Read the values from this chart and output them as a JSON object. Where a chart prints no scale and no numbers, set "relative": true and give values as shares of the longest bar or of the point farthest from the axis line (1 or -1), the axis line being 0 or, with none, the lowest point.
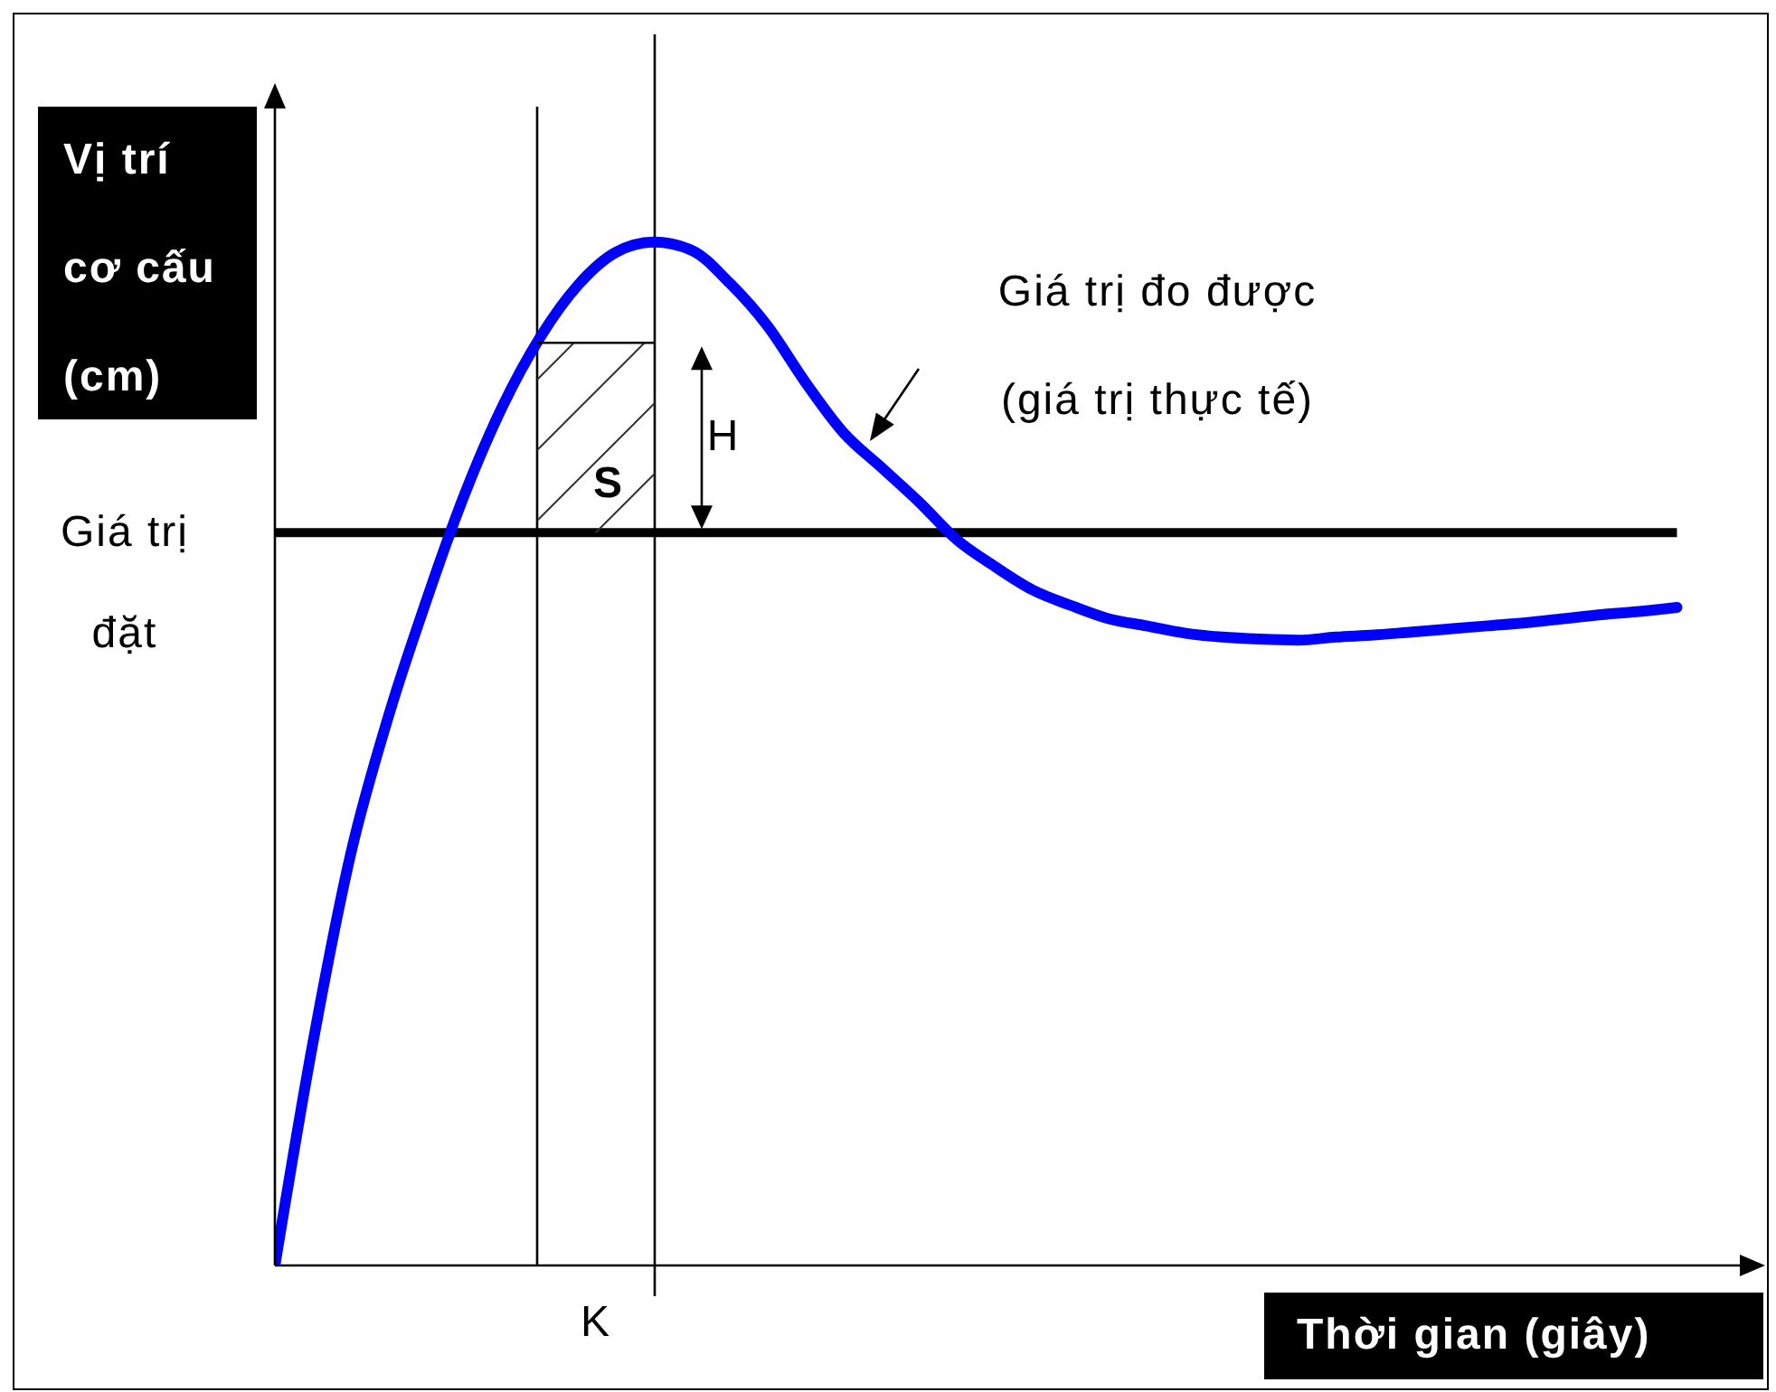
{
  "chart_data": {
    "type": "line",
    "ylabel": "Vị trí\ncơ cấu\n(cm)",
    "xlabel": "Thời gian (giây)",
    "relative": true,
    "categories": [
      null,
      null,
      null,
      null,
      null,
      null,
      null,
      null,
      null,
      null,
      null,
      null,
      null,
      null,
      null,
      null,
      null,
      null,
      null,
      null,
      null,
      null,
      null,
      null,
      null,
      null,
      null,
      null,
      null,
      null,
      null,
      null,
      null,
      null,
      null,
      null,
      null,
      null
    ],
    "series": [
      {
        "color": "#0000ff",
        "values": [
          0,
          0.217,
          0.402,
          0.537,
          0.65,
          0.753,
          0.839,
          0.907,
          0.958,
          0.99,
          1,
          0.992,
          0.96,
          0.918,
          0.863,
          0.814,
          0.78,
          0.746,
          0.709,
          0.683,
          0.66,
          0.645,
          0.632,
          0.625,
          0.618,
          0.614,
          0.612,
          0.611,
          0.614,
          0.616,
          0.619,
          0.622,
          0.625,
          0.628,
          0.632,
          0.636,
          0.639,
          0.643
        ]
      }
    ],
    "ref_lines": [
      {
        "axis": "y",
        "value": 0.716,
        "label": "Giá trị\nđặt",
        "color": "#000000"
      }
    ],
    "annotations": [
      "Giá trị đo được\n(giá trị thực tế)",
      "S",
      "H",
      "K"
    ],
    "marker": "none",
    "line_style": "solid"
  }
}
